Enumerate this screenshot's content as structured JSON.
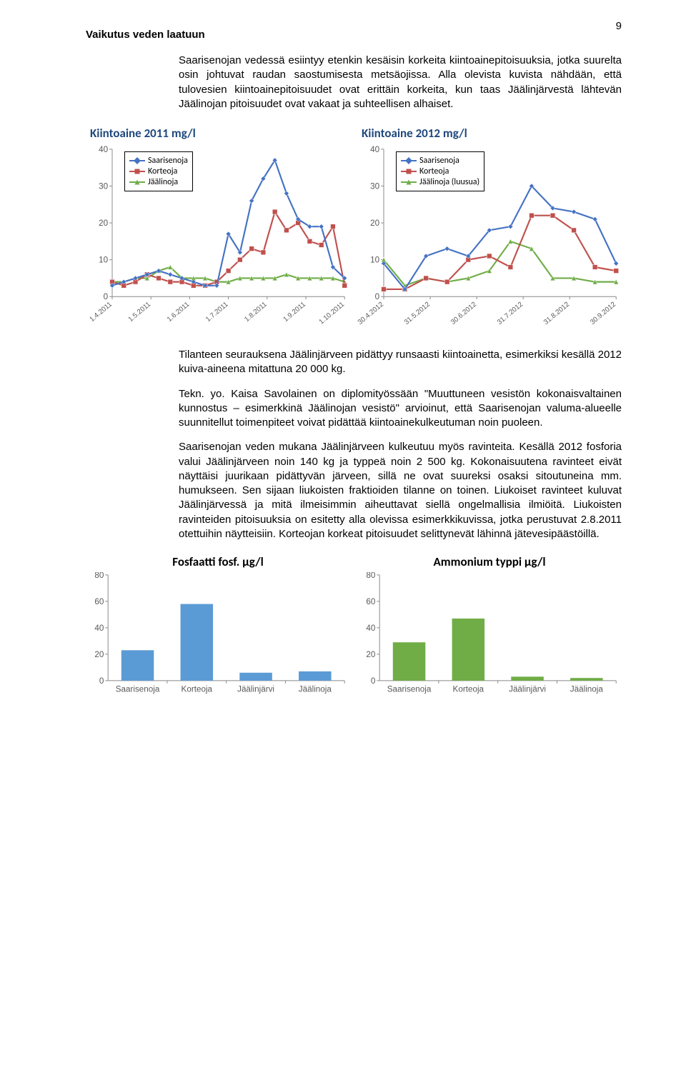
{
  "page_number": "9",
  "heading": "Vaikutus veden laatuun",
  "para1": "Saarisenojan vedessä esiintyy etenkin kesäisin korkeita kiintoainepitoisuuksia, jotka suurelta osin johtuvat raudan saostumisesta metsäojissa. Alla olevista kuvista nähdään, että tulovesien kiintoainepitoisuudet ovat erittäin korkeita, kun taas Jäälinjärvestä lähtevän Jäälinojan pitoisuudet ovat vakaat ja suhteellisen alhaiset.",
  "para2": "Tilanteen seurauksena Jäälinjärveen pidättyy runsaasti kiintoainetta, esimerkiksi kesällä 2012 kuiva-aineena mitattuna 20 000 kg.",
  "para3": "Tekn. yo. Kaisa Savolainen on diplomityössään \"Muuttuneen vesistön kokonaisvaltainen kunnostus – esimerkkinä Jäälinojan vesistö\" arvioinut, että Saarisenojan valuma-alueelle suunnitellut toimenpiteet voivat pidättää kiintoainekulkeutuman noin puoleen.",
  "para4": "Saarisenojan veden mukana Jäälinjärveen kulkeutuu myös ravinteita. Kesällä 2012 fosforia valui Jäälinjärveen noin 140 kg ja typpeä noin 2 500 kg. Kokonaisuutena ravinteet eivät näyttäisi juurikaan pidättyvän järveen, sillä ne ovat suureksi osaksi sitoutuneina mm. humukseen. Sen sijaan liukoisten fraktioiden tilanne on toinen. Liukoiset ravinteet kuluvat Jäälinjärvessä ja mitä ilmeisimmin aiheuttavat siellä ongelmallisia ilmiöitä. Liukoisten ravinteiden pitoisuuksia on esitetty alla olevissa esimerkkikuvissa, jotka perustuvat 2.8.2011 otettuihin näytteisiin. Korteojan korkeat pitoisuudet selittynevät lähinnä jätevesipäästöillä.",
  "line2011": {
    "title": "Kiintoaine 2011 mg/l",
    "ymax": 40,
    "ytick": 10,
    "xlabels": [
      "1.4.2011",
      "1.5.2011",
      "1.6.2011",
      "1.7.2011",
      "1.8.2011",
      "1.9.2011",
      "1.10.2011"
    ],
    "legend": [
      "Saarisenoja",
      "Korteoja",
      "Jäälinoja"
    ],
    "colors": {
      "saar": "#4472c4",
      "kort": "#c0504d",
      "jaal": "#70ad47"
    },
    "series": {
      "saar": [
        3,
        4,
        5,
        6,
        7,
        6,
        5,
        4,
        3,
        3,
        17,
        12,
        26,
        32,
        37,
        28,
        21,
        19,
        19,
        8,
        5
      ],
      "kort": [
        4,
        3,
        4,
        6,
        5,
        4,
        4,
        3,
        3,
        4,
        7,
        10,
        13,
        12,
        23,
        18,
        20,
        15,
        14,
        19,
        3
      ],
      "jaal": [
        4,
        4,
        5,
        5,
        7,
        8,
        5,
        5,
        5,
        4,
        4,
        5,
        5,
        5,
        5,
        6,
        5,
        5,
        5,
        5,
        4
      ]
    }
  },
  "line2012": {
    "title": "Kiintoaine 2012 mg/l",
    "title_color": "#1f497d",
    "ymax": 40,
    "ytick": 10,
    "xlabels": [
      "30.4.2012",
      "31.5.2012",
      "30.6.2012",
      "31.7.2012",
      "31.8.2012",
      "30.9.2012"
    ],
    "legend": [
      "Saarisenoja",
      "Korteoja",
      "Jäälinoja (luusua)"
    ],
    "colors": {
      "saar": "#4472c4",
      "kort": "#c0504d",
      "jaal": "#70ad47"
    },
    "series": {
      "saar": [
        9,
        2,
        11,
        13,
        11,
        18,
        19,
        30,
        24,
        23,
        21,
        9
      ],
      "kort": [
        2,
        2,
        5,
        4,
        10,
        11,
        8,
        22,
        22,
        18,
        8,
        7
      ],
      "jaal": [
        10,
        3,
        5,
        4,
        5,
        7,
        15,
        13,
        5,
        5,
        4,
        4
      ]
    }
  },
  "bar_fosf": {
    "title": "Fosfaatti fosf. μg/l",
    "ymax": 80,
    "ytick": 20,
    "categories": [
      "Saarisenoja",
      "Korteoja",
      "Jäälinjärvi",
      "Jäälinoja"
    ],
    "values": [
      23,
      58,
      6,
      7
    ],
    "bar_color": "#5b9bd5"
  },
  "bar_amm": {
    "title": "Ammonium typpi μg/l",
    "ymax": 80,
    "ytick": 20,
    "categories": [
      "Saarisenoja",
      "Korteoja",
      "Jäälinjärvi",
      "Jäälinoja"
    ],
    "values": [
      29,
      47,
      3,
      2
    ],
    "bar_color": "#70ad47"
  }
}
